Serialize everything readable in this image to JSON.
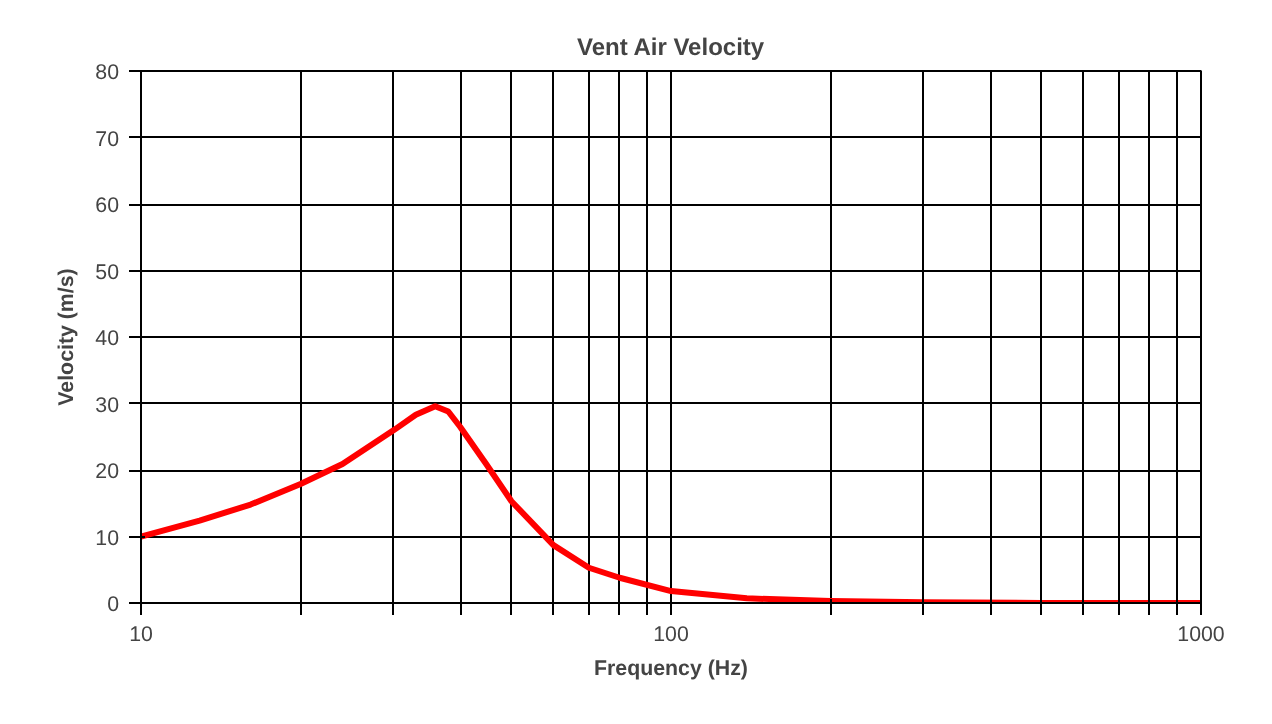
{
  "chart_data": {
    "type": "line",
    "title": "Vent Air Velocity",
    "xlabel": "Frequency (Hz)",
    "ylabel": "Velocity (m/s)",
    "log": "x",
    "grid": true,
    "marker": "none",
    "line_style": "solid",
    "xlim": [
      10,
      1000
    ],
    "xticks": [
      10,
      {
        "value": 20,
        "label": null
      },
      {
        "value": 30,
        "label": null
      },
      {
        "value": 40,
        "label": null
      },
      {
        "value": 50,
        "label": null
      },
      {
        "value": 60,
        "label": null
      },
      {
        "value": 70,
        "label": null
      },
      {
        "value": 80,
        "label": null
      },
      {
        "value": 90,
        "label": null
      },
      100,
      {
        "value": 200,
        "label": null
      },
      {
        "value": 300,
        "label": null
      },
      {
        "value": 400,
        "label": null
      },
      {
        "value": 500,
        "label": null
      },
      {
        "value": 600,
        "label": null
      },
      {
        "value": 700,
        "label": null
      },
      {
        "value": 800,
        "label": null
      },
      {
        "value": 900,
        "label": null
      },
      1000
    ],
    "ylim": [
      0,
      80
    ],
    "yticks": [
      0,
      10,
      20,
      30,
      40,
      50,
      60,
      70,
      80
    ],
    "x": [
      10,
      12.9,
      16.1,
      20,
      24,
      30,
      33,
      35.9,
      38,
      40,
      44.8,
      50,
      60,
      70,
      80,
      100,
      139,
      200,
      300,
      500,
      1000
    ],
    "series": [
      {
        "color": "#ff0000",
        "values": [
          10,
          12.4,
          14.8,
          17.9,
          20.9,
          26,
          28.3,
          29.6,
          28.8,
          26.5,
          20.9,
          15.3,
          8.7,
          5.3,
          3.8,
          1.8,
          0.7,
          0.3,
          0.1,
          0,
          0
        ]
      }
    ]
  }
}
